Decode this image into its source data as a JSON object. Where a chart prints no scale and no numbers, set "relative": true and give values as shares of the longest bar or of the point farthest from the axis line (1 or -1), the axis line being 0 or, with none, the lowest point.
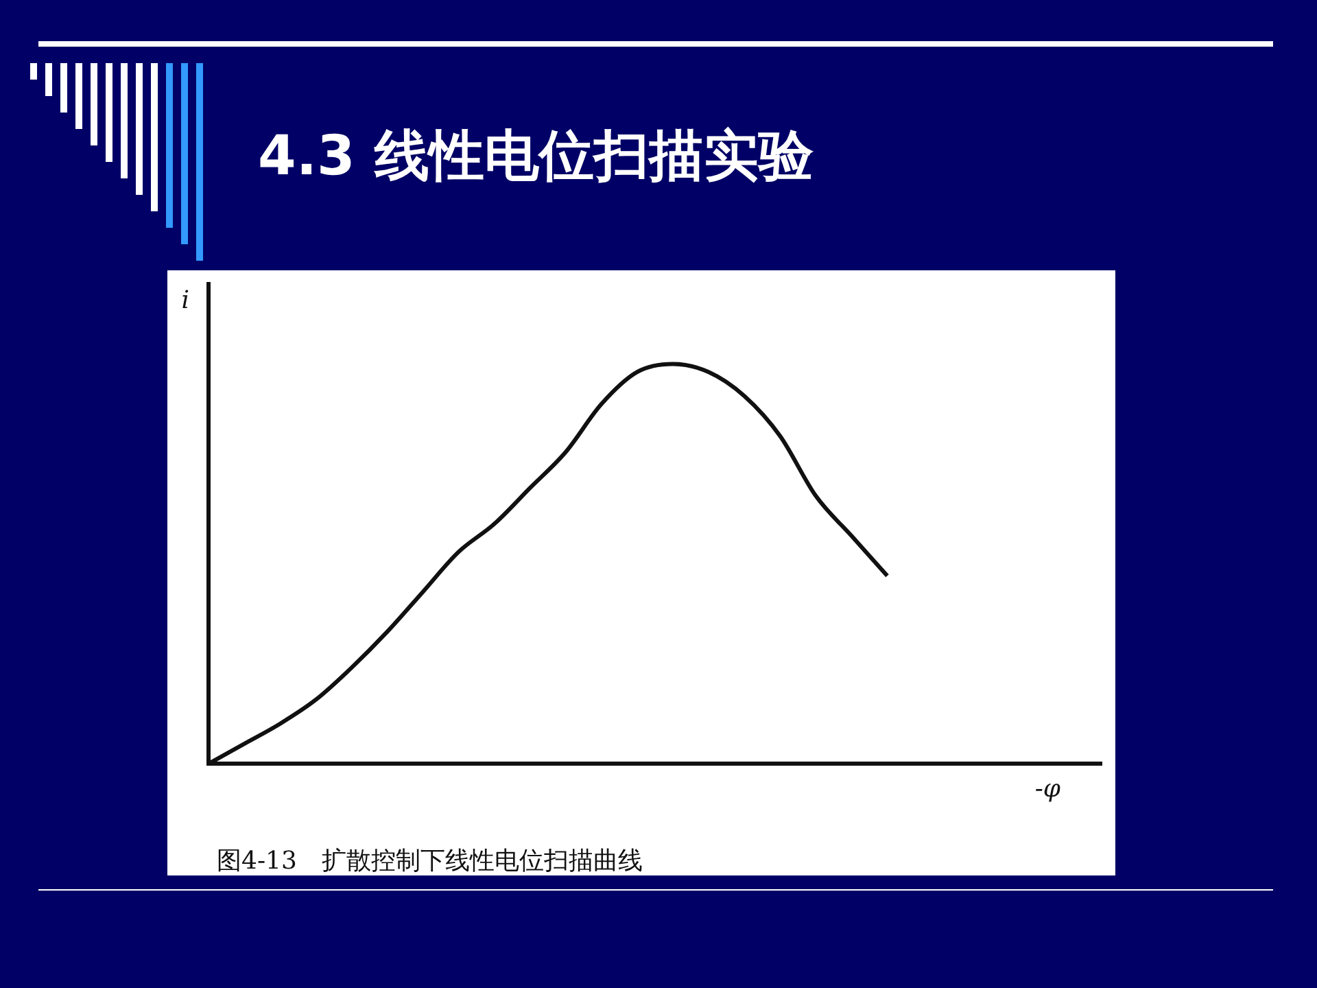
{
  "chart_data": {
    "type": "line",
    "title": "4.3 线性电位扫描实验",
    "xlabel": "-φ",
    "ylabel": "i",
    "relative": true,
    "categories": [
      null,
      null,
      null,
      null,
      null,
      null,
      null,
      null,
      null,
      null,
      null,
      null,
      null,
      null,
      null,
      null,
      null,
      null,
      null,
      null,
      null,
      null,
      null,
      null,
      null,
      null
    ],
    "series": [
      {
        "color": "#111111",
        "values": [
          0,
          0.05,
          0.1,
          0.16,
          0.24,
          0.33,
          0.43,
          0.53,
          0.6,
          0.69,
          0.78,
          0.9,
          0.98,
          1.0,
          0.98,
          0.92,
          0.82,
          0.67,
          0.57,
          0.47,
          null,
          null,
          null,
          null,
          null,
          null
        ]
      }
    ],
    "annotations": [
      "图4-13　扩散控制下线性电位扫描曲线"
    ],
    "grid": false,
    "legend": false,
    "marker": "none",
    "line_style": "solid"
  }
}
